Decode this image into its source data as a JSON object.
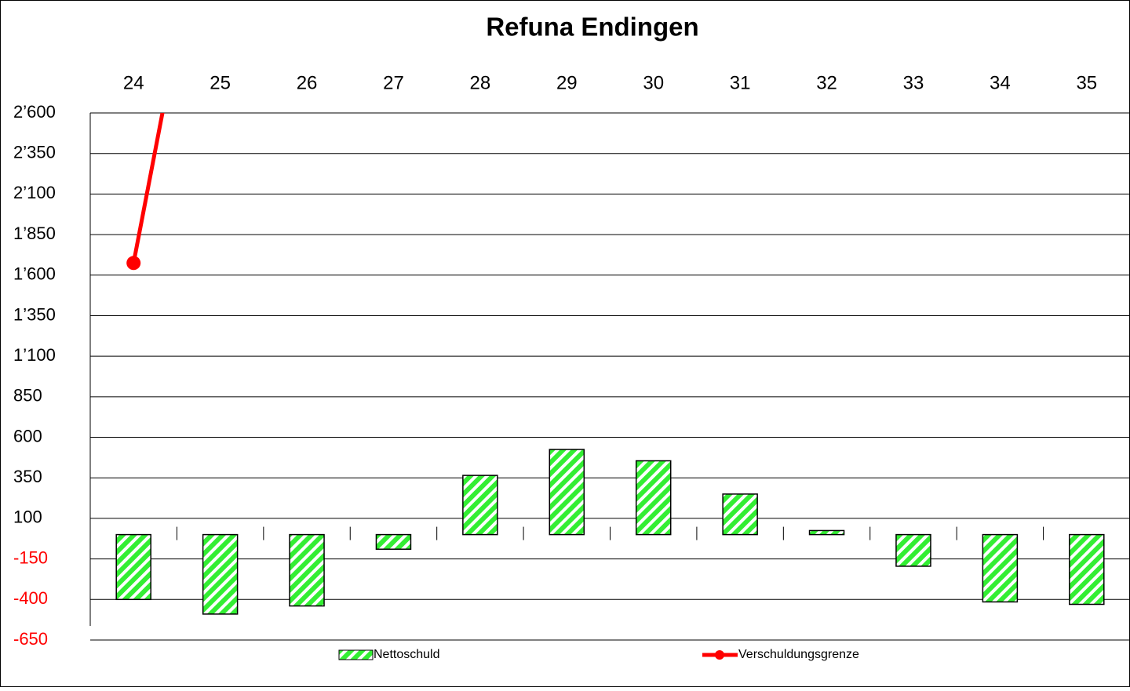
{
  "chart_data": {
    "type": "bar",
    "title": "Refuna Endingen",
    "categories": [
      "24",
      "25",
      "26",
      "27",
      "28",
      "29",
      "30",
      "31",
      "32",
      "33",
      "34",
      "35"
    ],
    "series": [
      {
        "name": "Nettoschuld",
        "type": "bar",
        "color": "#33ee33",
        "values": [
          -400,
          -490,
          -440,
          -90,
          365,
          525,
          455,
          250,
          25,
          -195,
          -415,
          -430
        ]
      },
      {
        "name": "Verschuldungsgrenze",
        "type": "line",
        "color": "#ff0000",
        "values": [
          1675,
          4450,
          null,
          null,
          null,
          null,
          null,
          null,
          null,
          null,
          null,
          null
        ]
      }
    ],
    "ylim": [
      -650,
      2600
    ],
    "yticks": [
      {
        "value": 2600,
        "label": "2’600"
      },
      {
        "value": 2350,
        "label": "2’350"
      },
      {
        "value": 2100,
        "label": "2’100"
      },
      {
        "value": 1850,
        "label": "1’850"
      },
      {
        "value": 1600,
        "label": "1’600"
      },
      {
        "value": 1350,
        "label": "1’350"
      },
      {
        "value": 1100,
        "label": "1’100"
      },
      850,
      600,
      350,
      100,
      -150,
      -400,
      -650
    ],
    "negative_tick_color": "#ff0000",
    "grid": true,
    "legend": "bottom"
  }
}
